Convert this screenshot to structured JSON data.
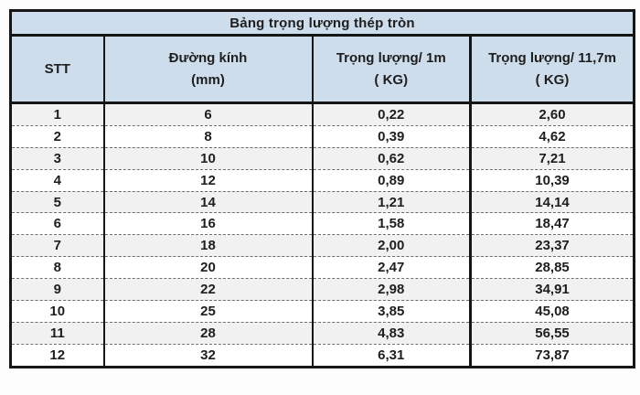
{
  "title": "Bảng trọng lượng thép tròn",
  "table": {
    "columns": [
      {
        "line1": "STT",
        "line2": ""
      },
      {
        "line1": "Đường kính",
        "line2": "(mm)"
      },
      {
        "line1": "Trọng lượng/ 1m",
        "line2": "( KG)"
      },
      {
        "line1": "Trọng lượng/ 11,7m",
        "line2": "( KG)"
      }
    ],
    "rows": [
      [
        "1",
        "6",
        "0,22",
        "2,60"
      ],
      [
        "2",
        "8",
        "0,39",
        "4,62"
      ],
      [
        "3",
        "10",
        "0,62",
        "7,21"
      ],
      [
        "4",
        "12",
        "0,89",
        "10,39"
      ],
      [
        "5",
        "14",
        "1,21",
        "14,14"
      ],
      [
        "6",
        "16",
        "1,58",
        "18,47"
      ],
      [
        "7",
        "18",
        "2,00",
        "23,37"
      ],
      [
        "8",
        "20",
        "2,47",
        "28,85"
      ],
      [
        "9",
        "22",
        "2,98",
        "34,91"
      ],
      [
        "10",
        "25",
        "3,85",
        "45,08"
      ],
      [
        "11",
        "28",
        "4,83",
        "56,55"
      ],
      [
        "12",
        "32",
        "6,31",
        "73,87"
      ]
    ]
  },
  "colors": {
    "header_bg": "#cdddeb",
    "row_alt_bg": "#f1f1f2",
    "row_bg": "#ffffff",
    "border": "#161616",
    "text": "#1e1e1e"
  }
}
